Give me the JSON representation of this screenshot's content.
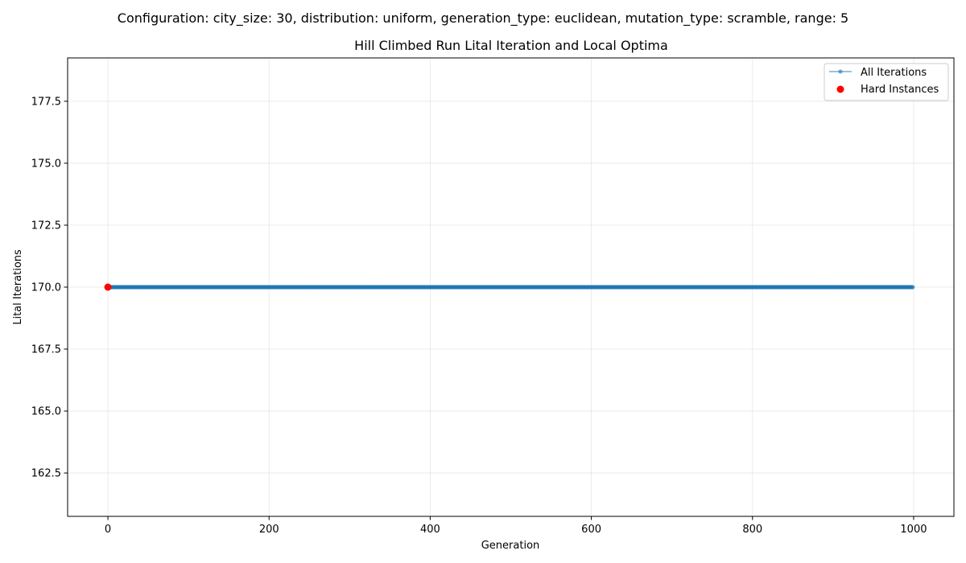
{
  "chart_data": {
    "type": "scatter",
    "suptitle": "Configuration: city_size: 30, distribution: uniform, generation_type: euclidean, mutation_type: scramble, range: 5",
    "title": "Hill Climbed Run Lital Iteration and Local Optima",
    "xlabel": "Generation",
    "ylabel": "Lital Iterations",
    "xlim": [
      -50,
      1050
    ],
    "ylim": [
      160.75,
      179.25
    ],
    "xticks": [
      0,
      200,
      400,
      600,
      800,
      1000
    ],
    "xtick_labels": [
      "0",
      "200",
      "400",
      "600",
      "800",
      "1000"
    ],
    "yticks": [
      162.5,
      165.0,
      167.5,
      170.0,
      172.5,
      175.0,
      177.5
    ],
    "ytick_labels": [
      "162.5",
      "165.0",
      "167.5",
      "170.0",
      "172.5",
      "175.0",
      "177.5"
    ],
    "grid": true,
    "legend_position": "top-right",
    "series": [
      {
        "name": "All Iterations",
        "kind": "line-marker",
        "color": "#1f77b4",
        "x_start": 0,
        "x_end": 999,
        "x_step": 1,
        "y": 170.0
      },
      {
        "name": "Hard Instances",
        "kind": "scatter",
        "color": "#ff0000",
        "x": [
          0
        ],
        "y": [
          170.0
        ]
      }
    ]
  }
}
